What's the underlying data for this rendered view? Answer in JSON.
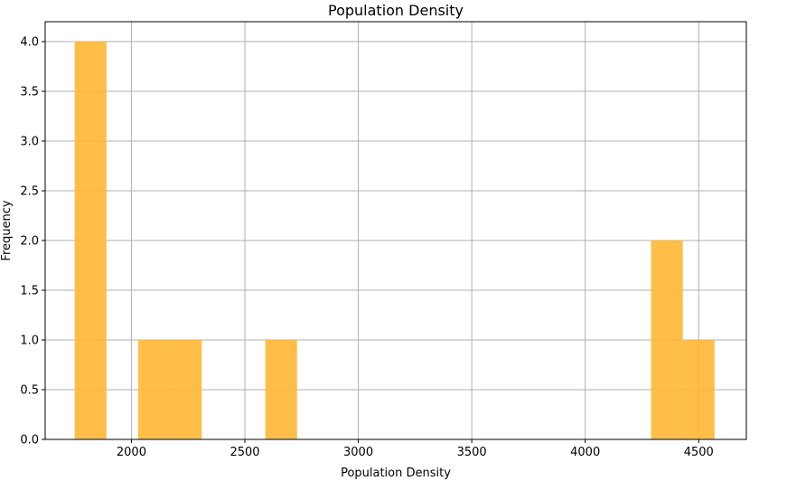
{
  "chart_data": {
    "type": "histogram",
    "title": "Population Density",
    "xlabel": "Population Density",
    "ylabel": "Frequency",
    "xlim": [
      1620,
      4710
    ],
    "ylim": [
      0,
      4.2
    ],
    "xticks": [
      2000,
      2500,
      3000,
      3500,
      4000,
      4500
    ],
    "yticks": [
      0.0,
      0.5,
      1.0,
      1.5,
      2.0,
      2.5,
      3.0,
      3.5,
      4.0
    ],
    "ytick_labels": [
      "0.0",
      "0.5",
      "1.0",
      "1.5",
      "2.0",
      "2.5",
      "3.0",
      "3.5",
      "4.0"
    ],
    "grid": true,
    "bar_color": "#ffb733",
    "bins": [
      {
        "x0": 1750,
        "x1": 1890,
        "count": 4
      },
      {
        "x0": 2030,
        "x1": 2170,
        "count": 1
      },
      {
        "x0": 2170,
        "x1": 2310,
        "count": 1
      },
      {
        "x0": 2590,
        "x1": 2730,
        "count": 1
      },
      {
        "x0": 4290,
        "x1": 4430,
        "count": 2
      },
      {
        "x0": 4430,
        "x1": 4570,
        "count": 1
      }
    ]
  }
}
